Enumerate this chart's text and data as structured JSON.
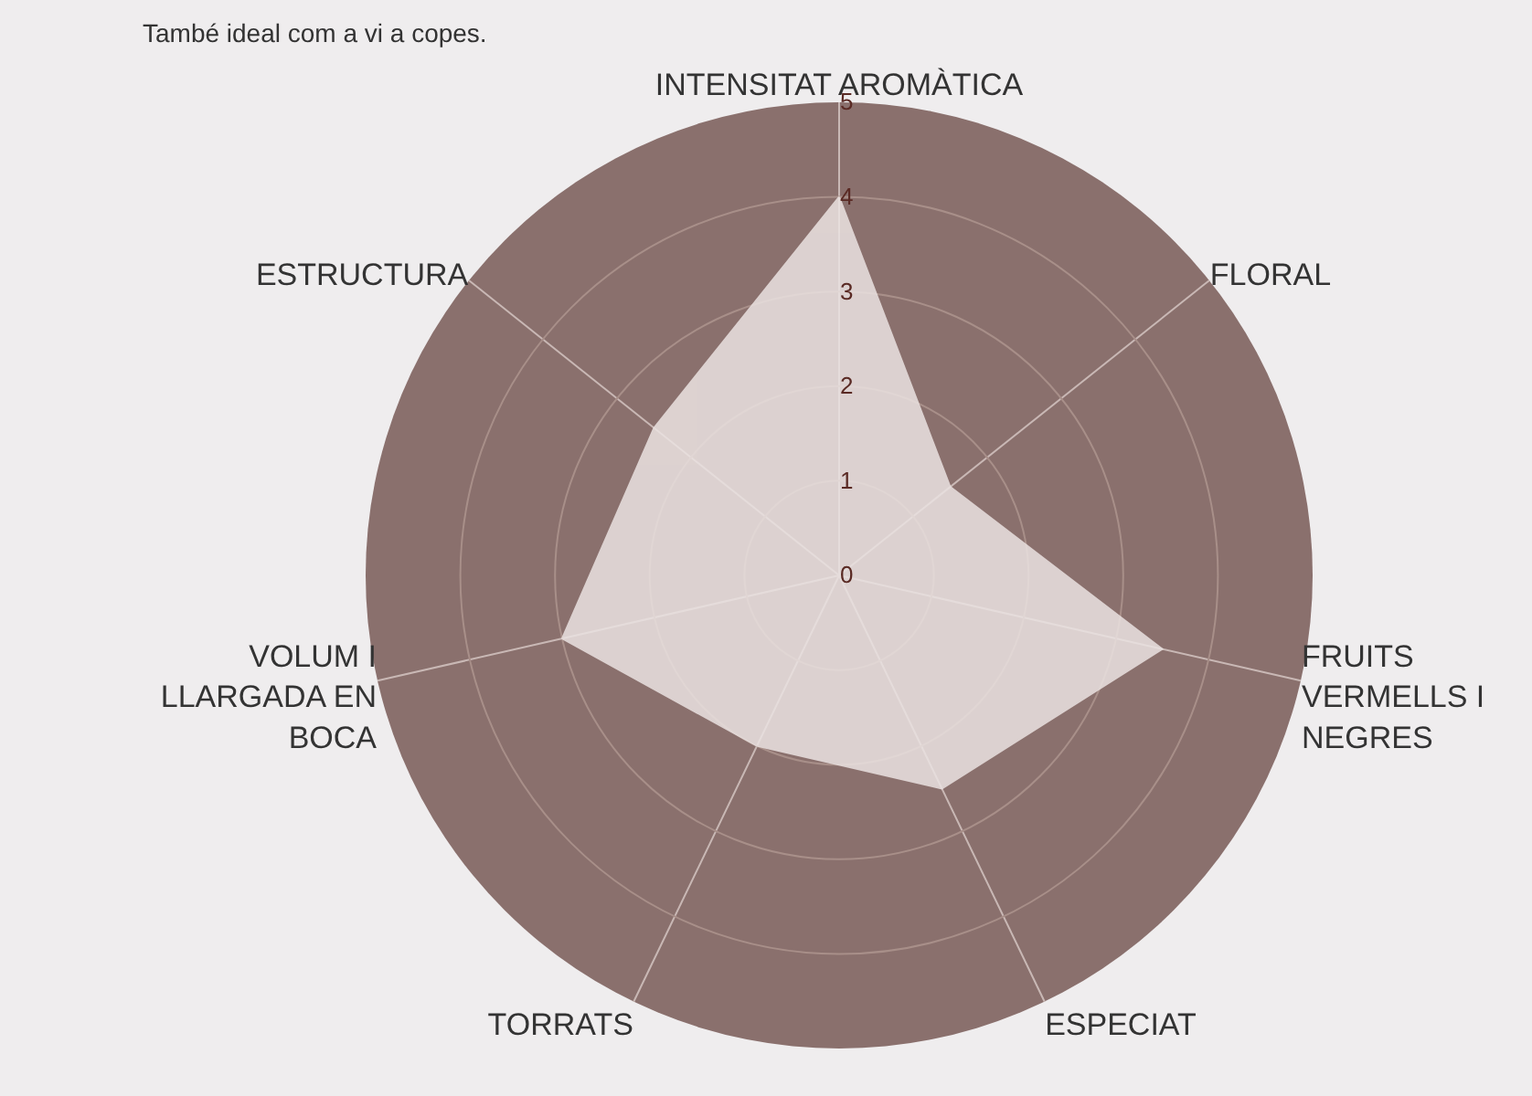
{
  "chart_data": {
    "type": "radar",
    "categories": [
      "INTENSITAT AROMÀTICA",
      "FLORAL",
      "FRUITS VERMELLS I NEGRES",
      "ESPECIAT",
      "TORRATS",
      "VOLUM I LLARGADA EN BOCA",
      "ESTRUCTURA"
    ],
    "series": [
      {
        "color": "#ebe3e2",
        "values": [
          4,
          1.5,
          3.5,
          2.5,
          2,
          3,
          2.5
        ]
      }
    ],
    "ylim": [
      0,
      5
    ],
    "yticks": [
      0,
      1,
      2,
      3,
      4,
      5
    ],
    "grid": true,
    "annotations": [
      "També ideal com a vi a copes."
    ]
  }
}
